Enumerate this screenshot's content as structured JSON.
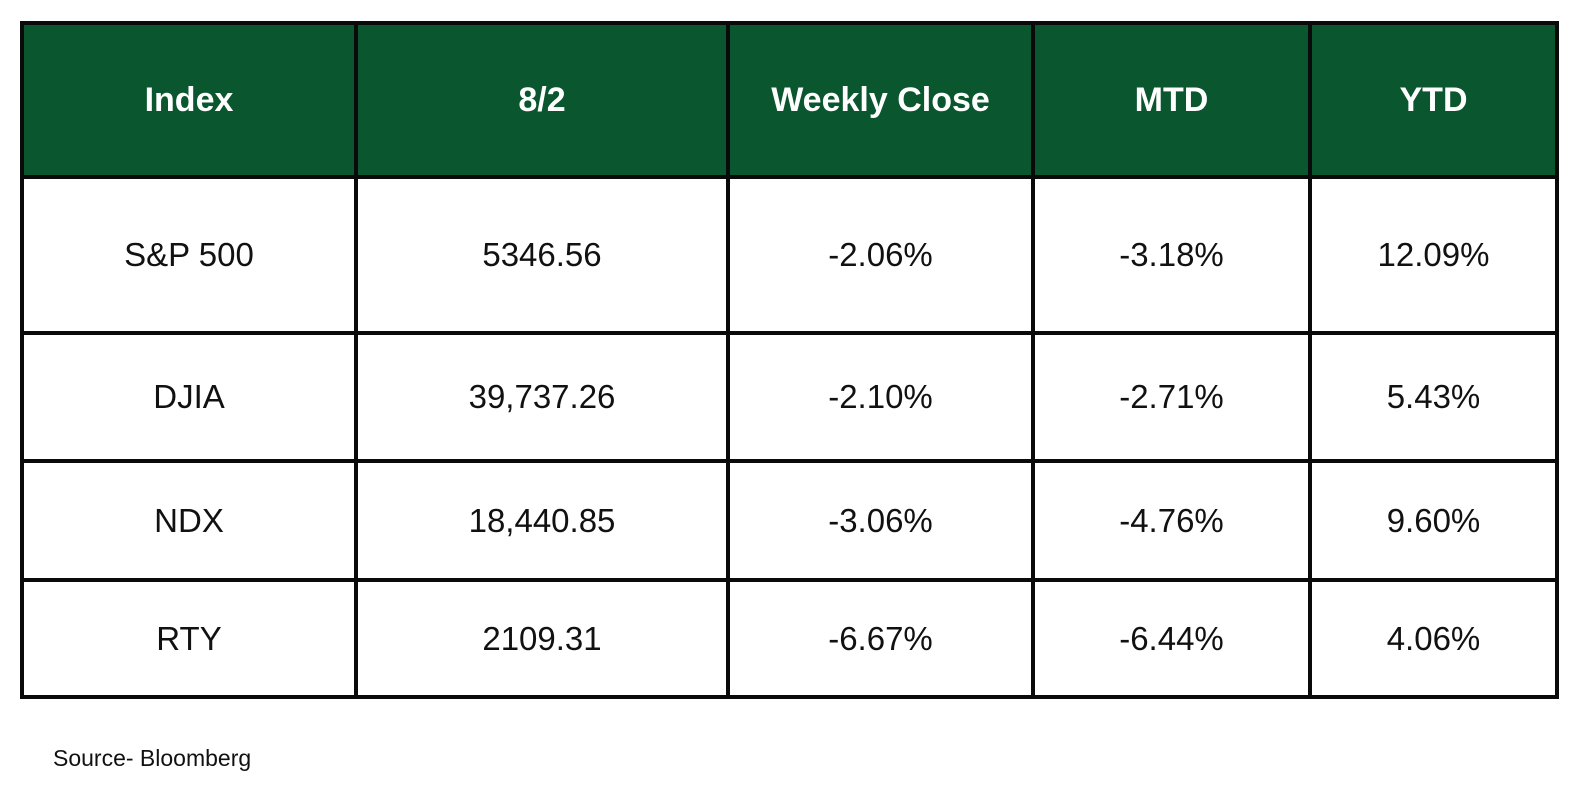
{
  "table": {
    "headers": [
      "Index",
      "8/2",
      "Weekly Close",
      "MTD",
      "YTD"
    ],
    "rows": [
      [
        "S&P 500",
        "5346.56",
        "-2.06%",
        "-3.18%",
        "12.09%"
      ],
      [
        "DJIA",
        "39,737.26",
        "-2.10%",
        "-2.71%",
        "5.43%"
      ],
      [
        "NDX",
        "18,440.85",
        "-3.06%",
        "-4.76%",
        "9.60%"
      ],
      [
        "RTY",
        "2109.31",
        "-6.67%",
        "-6.44%",
        "4.06%"
      ]
    ]
  },
  "footer": {
    "source": "Source- Bloomberg"
  },
  "colors": {
    "header_background": "#0a562e",
    "header_text": "#ffffff",
    "border": "#0a0a0a"
  }
}
